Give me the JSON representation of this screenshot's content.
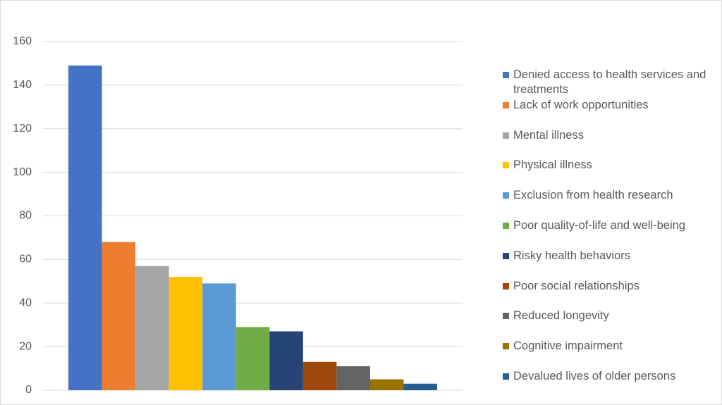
{
  "chart_data": {
    "type": "bar",
    "categories": [
      null
    ],
    "series": [
      {
        "name": "Denied access to health services and treatments",
        "color": "#4472c4",
        "values": [
          149
        ]
      },
      {
        "name": "Lack of work opportunities",
        "color": "#ed7d31",
        "values": [
          68
        ]
      },
      {
        "name": "Mental illness",
        "color": "#a5a5a5",
        "values": [
          57
        ]
      },
      {
        "name": "Physical illness",
        "color": "#ffc000",
        "values": [
          52
        ]
      },
      {
        "name": "Exclusion from health research",
        "color": "#5b9bd5",
        "values": [
          49
        ]
      },
      {
        "name": "Poor quality-of-life and well-being",
        "color": "#70ad47",
        "values": [
          29
        ]
      },
      {
        "name": "Risky health behaviors",
        "color": "#264478",
        "values": [
          27
        ]
      },
      {
        "name": "Poor social relationships",
        "color": "#9e480e",
        "values": [
          13
        ]
      },
      {
        "name": "Reduced longevity",
        "color": "#636363",
        "values": [
          11
        ]
      },
      {
        "name": "Cognitive impairment",
        "color": "#997300",
        "values": [
          5
        ]
      },
      {
        "name": "Devalued lives of older persons",
        "color": "#255e91",
        "values": [
          3
        ]
      }
    ],
    "ylim": [
      0,
      160
    ],
    "yticks": [
      0,
      20,
      40,
      60,
      80,
      100,
      120,
      140,
      160
    ],
    "grid": true,
    "legend": "right"
  }
}
